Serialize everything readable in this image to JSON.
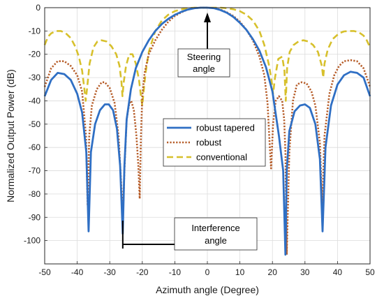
{
  "chart_data": {
    "type": "line",
    "title": "",
    "xlabel": "Azimuth angle (Degree)",
    "ylabel": "Normalized Output Power (dB)",
    "xlim": [
      -50,
      50
    ],
    "ylim": [
      -110,
      0
    ],
    "xticks": [
      -50,
      -40,
      -30,
      -20,
      -10,
      0,
      10,
      20,
      30,
      40,
      50
    ],
    "yticks": [
      0,
      -10,
      -20,
      -30,
      -40,
      -50,
      -60,
      -70,
      -80,
      -90,
      -100
    ],
    "grid": true,
    "legend_position": "center",
    "series": [
      {
        "name": "robust tapered",
        "color": "#2f6fc4",
        "style": "solid",
        "x": [
          -50,
          -48,
          -46,
          -44,
          -42,
          -40,
          -38.5,
          -37.2,
          -36.5,
          -35.8,
          -34.5,
          -33,
          -31.5,
          -30.3,
          -29,
          -27.8,
          -26.8,
          -26,
          -25.5,
          -24.8,
          -23.5,
          -22,
          -20,
          -18,
          -16,
          -14,
          -12,
          -10,
          -8,
          -6,
          -4,
          -2,
          0,
          2,
          4,
          6,
          8,
          10,
          12,
          14,
          16,
          18,
          20,
          22,
          23.3,
          24,
          24.4,
          25.2,
          26.8,
          28.5,
          30,
          31.5,
          33.2,
          34.6,
          35.4,
          36.3,
          38,
          40,
          42,
          44,
          46,
          48,
          50
        ],
        "y": [
          -38,
          -31,
          -28,
          -28.5,
          -31,
          -37,
          -45,
          -62,
          -96,
          -62,
          -50,
          -44,
          -41.5,
          -41.5,
          -44,
          -52,
          -68,
          -97,
          -68,
          -48,
          -35,
          -26,
          -19,
          -14,
          -10,
          -7,
          -4.8,
          -3.1,
          -1.8,
          -0.8,
          -0.2,
          0,
          0,
          -0.2,
          -1,
          -2.2,
          -4,
          -6.5,
          -9.5,
          -13.5,
          -18.5,
          -25.5,
          -36,
          -55,
          -70,
          -106,
          -70,
          -53,
          -44.5,
          -42,
          -41.5,
          -43,
          -50,
          -65,
          -96,
          -60,
          -42,
          -33,
          -29,
          -27.5,
          -28,
          -30,
          -38
        ]
      },
      {
        "name": "robust",
        "color": "#b65c28",
        "style": "dotted",
        "x": [
          -50,
          -48,
          -46,
          -44,
          -42,
          -40,
          -38.5,
          -37.3,
          -36.8,
          -36.3,
          -35.5,
          -34,
          -32.5,
          -31.5,
          -30,
          -28.5,
          -27.3,
          -26.3,
          -26,
          -25.5,
          -24.8,
          -24,
          -23.4,
          -22.6,
          -21.8,
          -21.2,
          -20.8,
          -20.4,
          -20,
          -19.3,
          -18,
          -16,
          -14,
          -12,
          -10,
          -8,
          -6,
          -4,
          -2,
          0,
          2,
          4,
          6,
          8,
          10,
          12,
          14,
          16,
          17.5,
          18.5,
          19.2,
          19.6,
          20.2,
          21,
          22,
          23,
          23.6,
          24,
          24.4,
          25.2,
          26.3,
          27.5,
          29,
          30.5,
          32,
          33.2,
          34.6,
          35.3,
          36,
          37.5,
          39,
          40.5,
          42,
          44,
          46,
          48,
          50
        ],
        "y": [
          -34,
          -26,
          -23,
          -23,
          -25,
          -29,
          -36,
          -55,
          -85,
          -55,
          -42,
          -35,
          -32,
          -32,
          -34.5,
          -41,
          -55,
          -80,
          -92,
          -70,
          -48,
          -41,
          -40,
          -44,
          -55,
          -68,
          -82,
          -55,
          -38,
          -28,
          -20,
          -14,
          -9.5,
          -6,
          -3.6,
          -2,
          -0.8,
          -0.2,
          0,
          0,
          -0.2,
          -0.8,
          -2,
          -3.6,
          -6,
          -9.5,
          -14,
          -21,
          -29,
          -41,
          -60,
          -69,
          -50,
          -40,
          -38,
          -40,
          -48,
          -62,
          -106,
          -62,
          -40,
          -33,
          -32,
          -32.5,
          -36,
          -42,
          -58,
          -85,
          -55,
          -37,
          -29,
          -25,
          -23,
          -22.5,
          -23,
          -26,
          -34
        ]
      },
      {
        "name": "conventional",
        "color": "#d7c02c",
        "style": "dashed",
        "x": [
          -50,
          -49,
          -48,
          -46.5,
          -45,
          -43.5,
          -42,
          -40.5,
          -39.5,
          -38.5,
          -37.8,
          -37.4,
          -37,
          -36.2,
          -35,
          -33.8,
          -32.5,
          -31,
          -29.5,
          -28,
          -27,
          -26.4,
          -26.1,
          -25.7,
          -25,
          -24,
          -23,
          -22,
          -21,
          -20.4,
          -20,
          -19.6,
          -19,
          -18,
          -16,
          -14,
          -12,
          -10,
          -8,
          -6,
          -4,
          -2,
          0,
          2,
          4,
          6,
          8,
          10,
          12,
          14,
          16,
          17.5,
          19,
          19.8,
          20.2,
          20.8,
          21.8,
          23,
          23.7,
          24.1,
          24.5,
          25.3,
          26.5,
          28,
          29.5,
          31,
          32.5,
          34,
          35.2,
          35.6,
          36,
          37,
          38.5,
          40.5,
          42,
          43.5,
          45,
          46.5,
          48,
          49,
          50
        ],
        "y": [
          -16,
          -12.5,
          -11,
          -10,
          -10,
          -11,
          -13,
          -17,
          -21,
          -27,
          -35,
          -40,
          -35,
          -24,
          -17,
          -14.5,
          -14,
          -14.5,
          -16.5,
          -20,
          -25,
          -32,
          -38,
          -32,
          -25,
          -20,
          -20,
          -24,
          -31,
          -38,
          -42,
          -36,
          -28,
          -19,
          -10,
          -5.5,
          -3,
          -1.5,
          -0.7,
          -0.2,
          0,
          0,
          0,
          0,
          0,
          -0.2,
          -0.7,
          -1.5,
          -3,
          -5.5,
          -10,
          -16,
          -25,
          -32,
          -37,
          -30,
          -22,
          -21,
          -27,
          -40,
          -26,
          -19,
          -16,
          -14.5,
          -14,
          -14.5,
          -16,
          -19,
          -25,
          -30,
          -24,
          -18,
          -13.5,
          -11,
          -10.2,
          -10,
          -10,
          -10.5,
          -12,
          -14,
          -17
        ]
      }
    ],
    "annotations": [
      {
        "lines": [
          "Steering",
          "angle"
        ]
      },
      {
        "lines": [
          "Interference",
          "angle"
        ]
      }
    ]
  }
}
